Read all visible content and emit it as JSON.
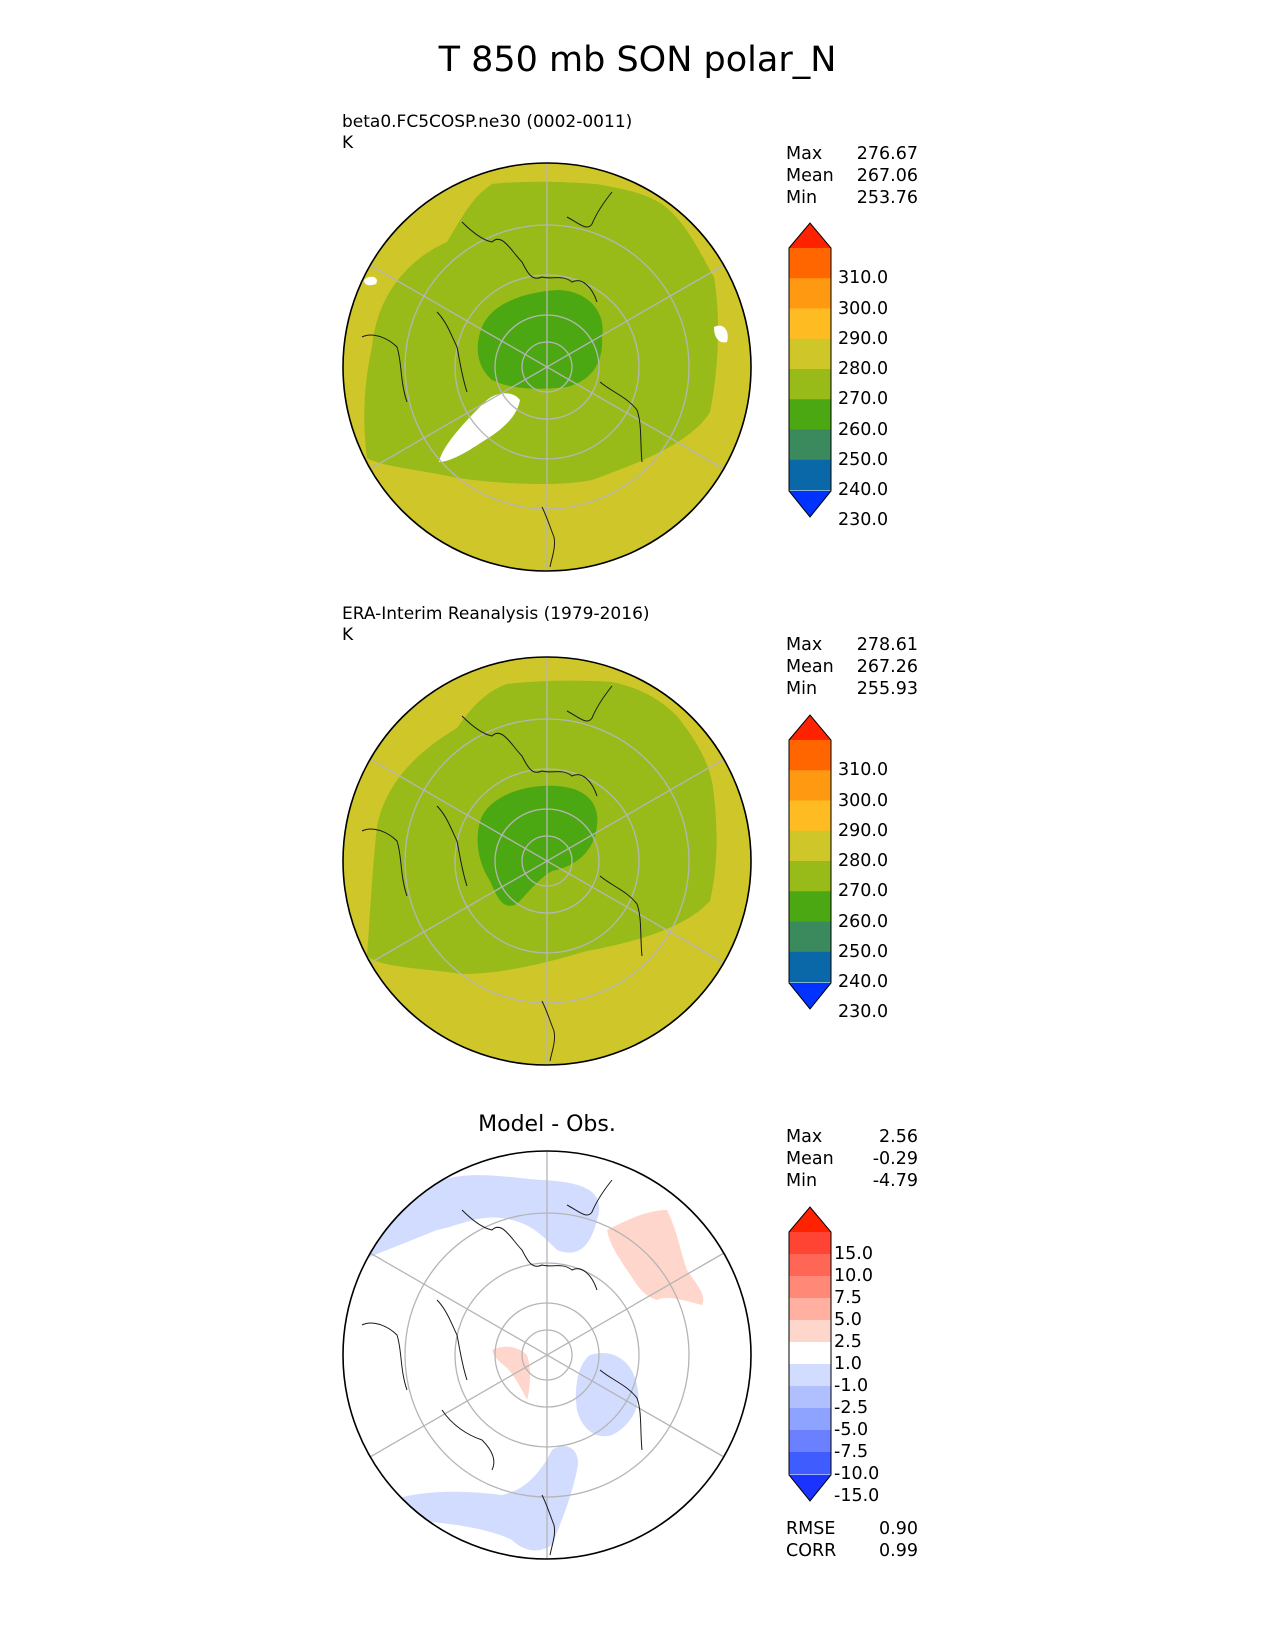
{
  "title": "T 850 mb SON polar_N",
  "panels": [
    {
      "label_line1": "beta0.FC5COSP.ne30 (0002-0011)",
      "label_line2": "K",
      "stats": [
        {
          "name": "Max",
          "value": "276.67"
        },
        {
          "name": "Mean",
          "value": "267.06"
        },
        {
          "name": "Min",
          "value": "253.76"
        }
      ]
    },
    {
      "label_line1": "ERA-Interim Reanalysis (1979-2016)",
      "label_line2": "K",
      "stats": [
        {
          "name": "Max",
          "value": "278.61"
        },
        {
          "name": "Mean",
          "value": "267.26"
        },
        {
          "name": "Min",
          "value": "255.93"
        }
      ]
    },
    {
      "title": "Model - Obs.",
      "stats": [
        {
          "name": "Max",
          "value": "2.56"
        },
        {
          "name": "Mean",
          "value": "-0.29"
        },
        {
          "name": "Min",
          "value": "-4.79"
        }
      ],
      "extra_stats": [
        {
          "name": "RMSE",
          "value": "0.90"
        },
        {
          "name": "CORR",
          "value": "0.99"
        }
      ]
    }
  ],
  "colorbar_temp": {
    "ticks": [
      "310.0",
      "300.0",
      "290.0",
      "280.0",
      "270.0",
      "260.0",
      "250.0",
      "240.0",
      "230.0"
    ],
    "colors": [
      "#ff2200",
      "#ff6600",
      "#ff9911",
      "#ffbb22",
      "#cfc72a",
      "#99bb1a",
      "#4ca812",
      "#3b8a5e",
      "#0a68a8",
      "#0033ff"
    ]
  },
  "colorbar_diff": {
    "ticks": [
      "15.0",
      "10.0",
      "7.5",
      "5.0",
      "2.5",
      "1.0",
      "-1.0",
      "-2.5",
      "-5.0",
      "-7.5",
      "-10.0",
      "-15.0"
    ],
    "colors": [
      "#ff2200",
      "#ff4433",
      "#ff6655",
      "#ff8877",
      "#ffb0a0",
      "#ffd6cc",
      "#ffffff",
      "#d2dcff",
      "#b0c0ff",
      "#8ea2ff",
      "#6a80ff",
      "#3f5cff",
      "#1a33ff"
    ]
  }
}
